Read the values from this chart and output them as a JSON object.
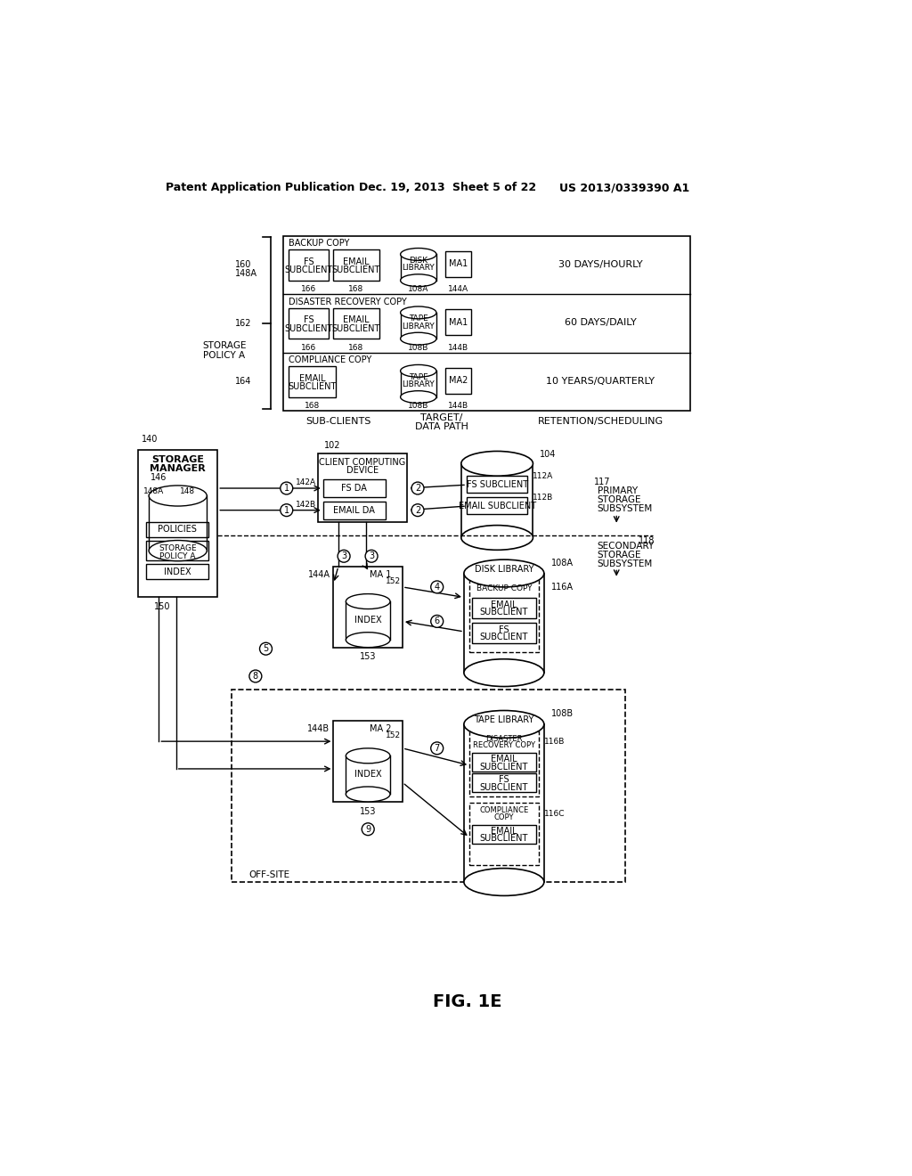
{
  "bg_color": "#ffffff",
  "header_text": "Patent Application Publication",
  "header_date": "Dec. 19, 2013",
  "header_sheet": "Sheet 5 of 22",
  "header_patent": "US 2013/0339390 A1",
  "fig_label": "FIG. 1E"
}
